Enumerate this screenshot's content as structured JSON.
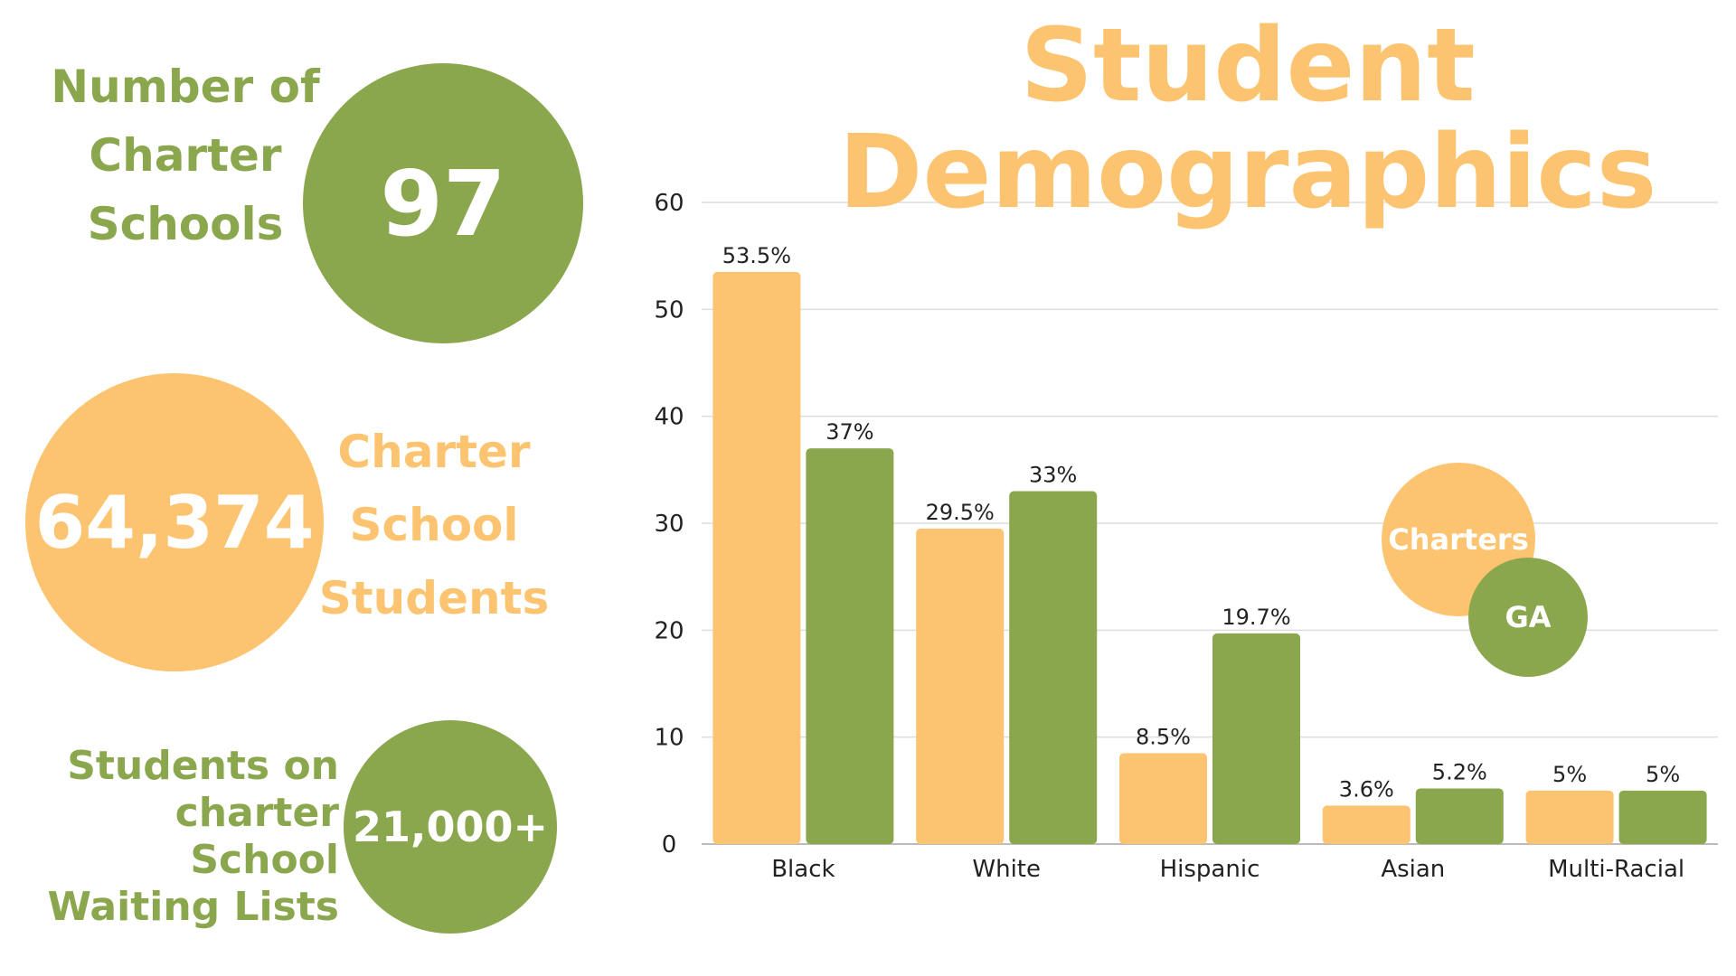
{
  "stats": {
    "schools": {
      "label_lines": [
        "Number of",
        "Charter",
        "Schools"
      ],
      "value": "97"
    },
    "students": {
      "label_lines": [
        "Charter",
        "School",
        "Students"
      ],
      "value": "64,374"
    },
    "waiting": {
      "label_lines": [
        "Students on",
        "charter School",
        "Waiting Lists"
      ],
      "value": "21,000+"
    }
  },
  "title_lines": [
    "Student",
    "Demographics"
  ],
  "colors": {
    "charters": "#fcc470",
    "ga": "#8aa74e",
    "grid": "#dddddd",
    "text": "#222222"
  },
  "chart_data": {
    "type": "bar",
    "title": "Student Demographics",
    "categories": [
      "Black",
      "White",
      "Hispanic",
      "Asian",
      "Multi-Racial"
    ],
    "series": [
      {
        "name": "Charters",
        "values": [
          53.5,
          29.5,
          8.5,
          3.6,
          5
        ],
        "labels": [
          "53.5%",
          "29.5%",
          "8.5%",
          "3.6%",
          "5%"
        ]
      },
      {
        "name": "GA",
        "values": [
          37,
          33,
          19.7,
          5.2,
          5
        ],
        "labels": [
          "37%",
          "33%",
          "19.7%",
          "5.2%",
          "5%"
        ]
      }
    ],
    "ylim": [
      0,
      60
    ],
    "yticks": [
      0,
      10,
      20,
      30,
      40,
      50,
      60
    ],
    "grid": true,
    "legend_position": "right"
  }
}
